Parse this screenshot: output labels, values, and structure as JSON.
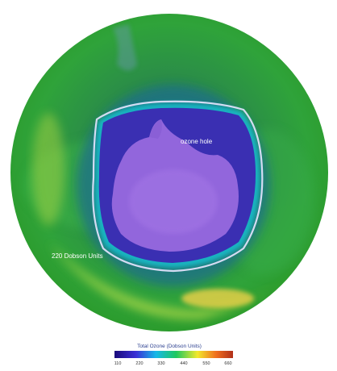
{
  "map": {
    "labels": {
      "ozone_hole": "ozone hole",
      "dobson_contour": "220 Dobson Units"
    }
  },
  "legend": {
    "title": "Total Ozone (Dobson Units)",
    "ticks": [
      "110",
      "220",
      "330",
      "440",
      "550",
      "660"
    ],
    "colors": [
      "#1a0a7a",
      "#3a2fd6",
      "#16b8e8",
      "#1ec860",
      "#f2e82c",
      "#ef6d1e",
      "#b0301a"
    ]
  },
  "colors": {
    "globe_green": "#2a9a38",
    "hole_purple": "#4b2fb0",
    "antarctica": "#9a6be0",
    "contour": "#e8e6ff"
  }
}
